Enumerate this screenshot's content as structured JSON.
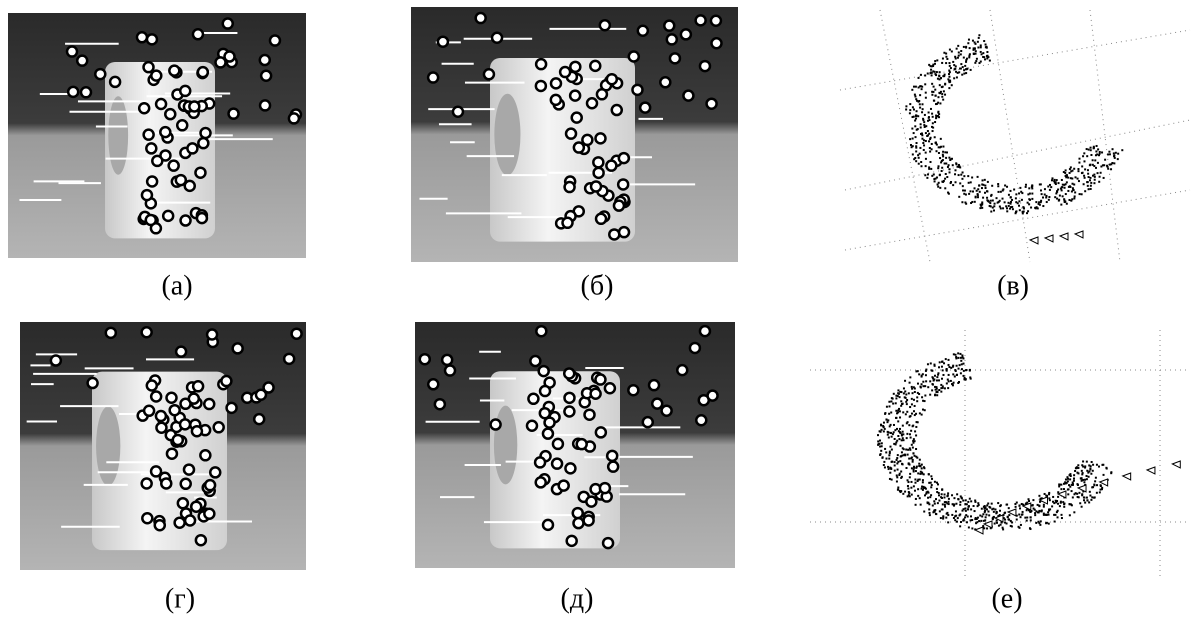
{
  "figure": {
    "panels": [
      {
        "label": "(а)"
      },
      {
        "label": "(б)"
      },
      {
        "label": "(в)"
      },
      {
        "label": "(г)"
      },
      {
        "label": "(д)"
      },
      {
        "label": "(е)"
      }
    ]
  }
}
